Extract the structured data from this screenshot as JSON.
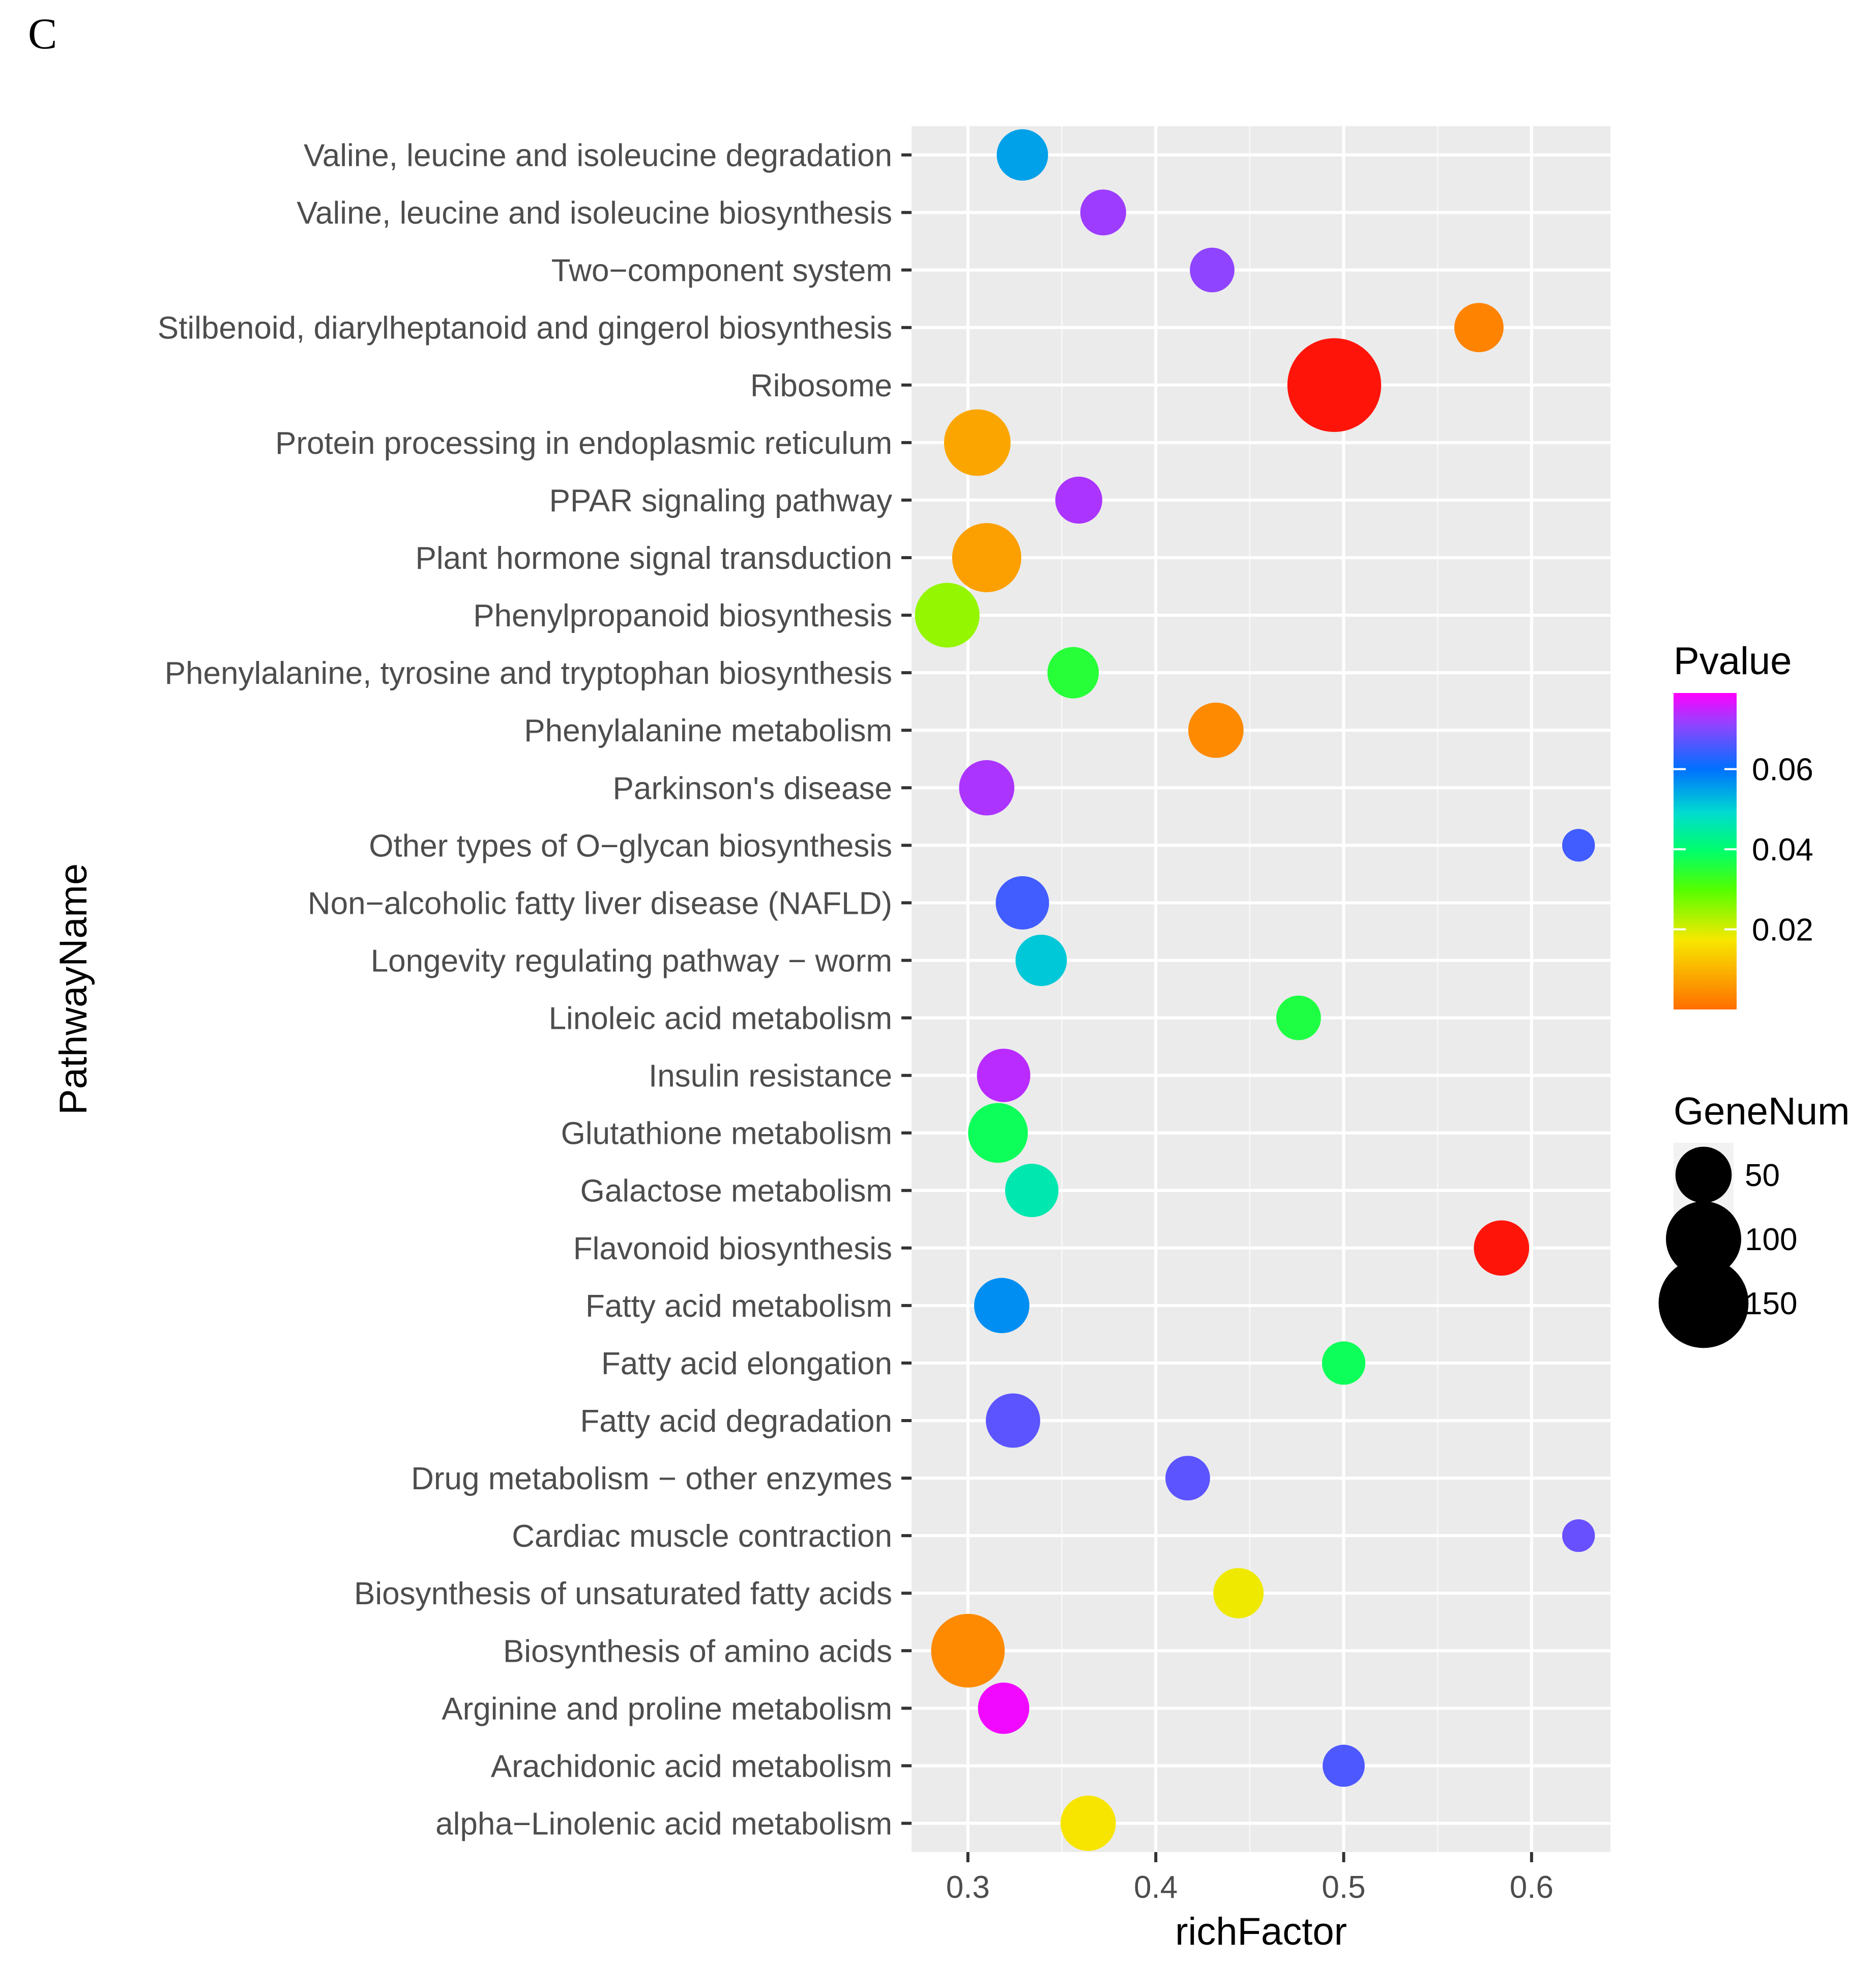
{
  "panel_label": "C",
  "chart_data": {
    "type": "scatter",
    "subtype": "bubble",
    "xlabel": "richFactor",
    "ylabel": "PathwayName",
    "xlim": [
      0.27,
      0.642
    ],
    "xticks": [
      0.3,
      0.4,
      0.5,
      0.6
    ],
    "xtick_labels": [
      "0.3",
      "0.4",
      "0.5",
      "0.6"
    ],
    "categories": [
      "Valine, leucine and isoleucine degradation",
      "Valine, leucine and isoleucine biosynthesis",
      "Two−component system",
      "Stilbenoid, diarylheptanoid and gingerol biosynthesis",
      "Ribosome",
      "Protein processing in endoplasmic reticulum",
      "PPAR signaling pathway",
      "Plant hormone signal transduction",
      "Phenylpropanoid biosynthesis",
      "Phenylalanine, tyrosine and tryptophan biosynthesis",
      "Phenylalanine metabolism",
      "Parkinson's disease",
      "Other types of O−glycan biosynthesis",
      "Non−alcoholic fatty liver disease (NAFLD)",
      "Longevity regulating pathway − worm",
      "Linoleic acid metabolism",
      "Insulin resistance",
      "Glutathione metabolism",
      "Galactose metabolism",
      "Flavonoid biosynthesis",
      "Fatty acid metabolism",
      "Fatty acid elongation",
      "Fatty acid degradation",
      "Drug metabolism − other enzymes",
      "Cardiac muscle contraction",
      "Biosynthesis of unsaturated fatty acids",
      "Biosynthesis of amino acids",
      "Arginine and proline metabolism",
      "Arachidonic acid metabolism",
      "alpha−Linolenic acid metabolism"
    ],
    "points": [
      {
        "pathway": "Valine, leucine and isoleucine degradation",
        "richFactor": 0.329,
        "pvalue": 0.055,
        "genenum": 40
      },
      {
        "pathway": "Valine, leucine and isoleucine biosynthesis",
        "richFactor": 0.372,
        "pvalue": 0.072,
        "genenum": 30
      },
      {
        "pathway": "Two−component system",
        "richFactor": 0.43,
        "pvalue": 0.071,
        "genenum": 28
      },
      {
        "pathway": "Stilbenoid, diarylheptanoid and gingerol biosynthesis",
        "richFactor": 0.572,
        "pvalue": 0.003,
        "genenum": 36
      },
      {
        "pathway": "Ribosome",
        "richFactor": 0.495,
        "pvalue": 0.0,
        "genenum": 165
      },
      {
        "pathway": "Protein processing in endoplasmic reticulum",
        "richFactor": 0.305,
        "pvalue": 0.008,
        "genenum": 75
      },
      {
        "pathway": "PPAR signaling pathway",
        "richFactor": 0.359,
        "pvalue": 0.073,
        "genenum": 32
      },
      {
        "pathway": "Plant hormone signal transduction",
        "richFactor": 0.31,
        "pvalue": 0.007,
        "genenum": 82
      },
      {
        "pathway": "Phenylpropanoid biosynthesis",
        "richFactor": 0.289,
        "pvalue": 0.025,
        "genenum": 70
      },
      {
        "pathway": "Phenylalanine, tyrosine and tryptophan biosynthesis",
        "richFactor": 0.356,
        "pvalue": 0.035,
        "genenum": 40
      },
      {
        "pathway": "Phenylalanine metabolism",
        "richFactor": 0.432,
        "pvalue": 0.004,
        "genenum": 48
      },
      {
        "pathway": "Parkinson's disease",
        "richFactor": 0.31,
        "pvalue": 0.073,
        "genenum": 48
      },
      {
        "pathway": "Other types of O−glycan biosynthesis",
        "richFactor": 0.625,
        "pvalue": 0.065,
        "genenum": 12
      },
      {
        "pathway": "Non−alcoholic fatty liver disease (NAFLD)",
        "richFactor": 0.329,
        "pvalue": 0.065,
        "genenum": 44
      },
      {
        "pathway": "Longevity regulating pathway − worm",
        "richFactor": 0.339,
        "pvalue": 0.051,
        "genenum": 40
      },
      {
        "pathway": "Linoleic acid metabolism",
        "richFactor": 0.476,
        "pvalue": 0.036,
        "genenum": 28
      },
      {
        "pathway": "Insulin resistance",
        "richFactor": 0.319,
        "pvalue": 0.074,
        "genenum": 44
      },
      {
        "pathway": "Glutathione metabolism",
        "richFactor": 0.316,
        "pvalue": 0.038,
        "genenum": 58
      },
      {
        "pathway": "Galactose metabolism",
        "richFactor": 0.334,
        "pvalue": 0.046,
        "genenum": 44
      },
      {
        "pathway": "Flavonoid biosynthesis",
        "richFactor": 0.584,
        "pvalue": 0.001,
        "genenum": 48
      },
      {
        "pathway": "Fatty acid metabolism",
        "richFactor": 0.318,
        "pvalue": 0.057,
        "genenum": 48
      },
      {
        "pathway": "Fatty acid elongation",
        "richFactor": 0.5,
        "pvalue": 0.038,
        "genenum": 26
      },
      {
        "pathway": "Fatty acid degradation",
        "richFactor": 0.324,
        "pvalue": 0.067,
        "genenum": 46
      },
      {
        "pathway": "Drug metabolism − other enzymes",
        "richFactor": 0.417,
        "pvalue": 0.067,
        "genenum": 28
      },
      {
        "pathway": "Cardiac muscle contraction",
        "richFactor": 0.625,
        "pvalue": 0.068,
        "genenum": 12
      },
      {
        "pathway": "Biosynthesis of unsaturated fatty acids",
        "richFactor": 0.444,
        "pvalue": 0.018,
        "genenum": 38
      },
      {
        "pathway": "Biosynthesis of amino acids",
        "richFactor": 0.3,
        "pvalue": 0.004,
        "genenum": 95
      },
      {
        "pathway": "Arginine and proline metabolism",
        "richFactor": 0.319,
        "pvalue": 0.078,
        "genenum": 40
      },
      {
        "pathway": "Arachidonic acid metabolism",
        "richFactor": 0.5,
        "pvalue": 0.066,
        "genenum": 24
      },
      {
        "pathway": "alpha−Linolenic acid metabolism",
        "richFactor": 0.364,
        "pvalue": 0.017,
        "genenum": 48
      }
    ],
    "color_legend": {
      "title": "Pvalue",
      "range": [
        0.0,
        0.079
      ],
      "ticks": [
        0.02,
        0.04,
        0.06
      ],
      "tick_labels": [
        "0.02",
        "0.04",
        "0.06"
      ],
      "placement": "right"
    },
    "size_legend": {
      "title": "GeneNum",
      "values": [
        50,
        100,
        150
      ],
      "labels": [
        "50",
        "100",
        "150"
      ],
      "placement": "right"
    },
    "grid": true
  }
}
